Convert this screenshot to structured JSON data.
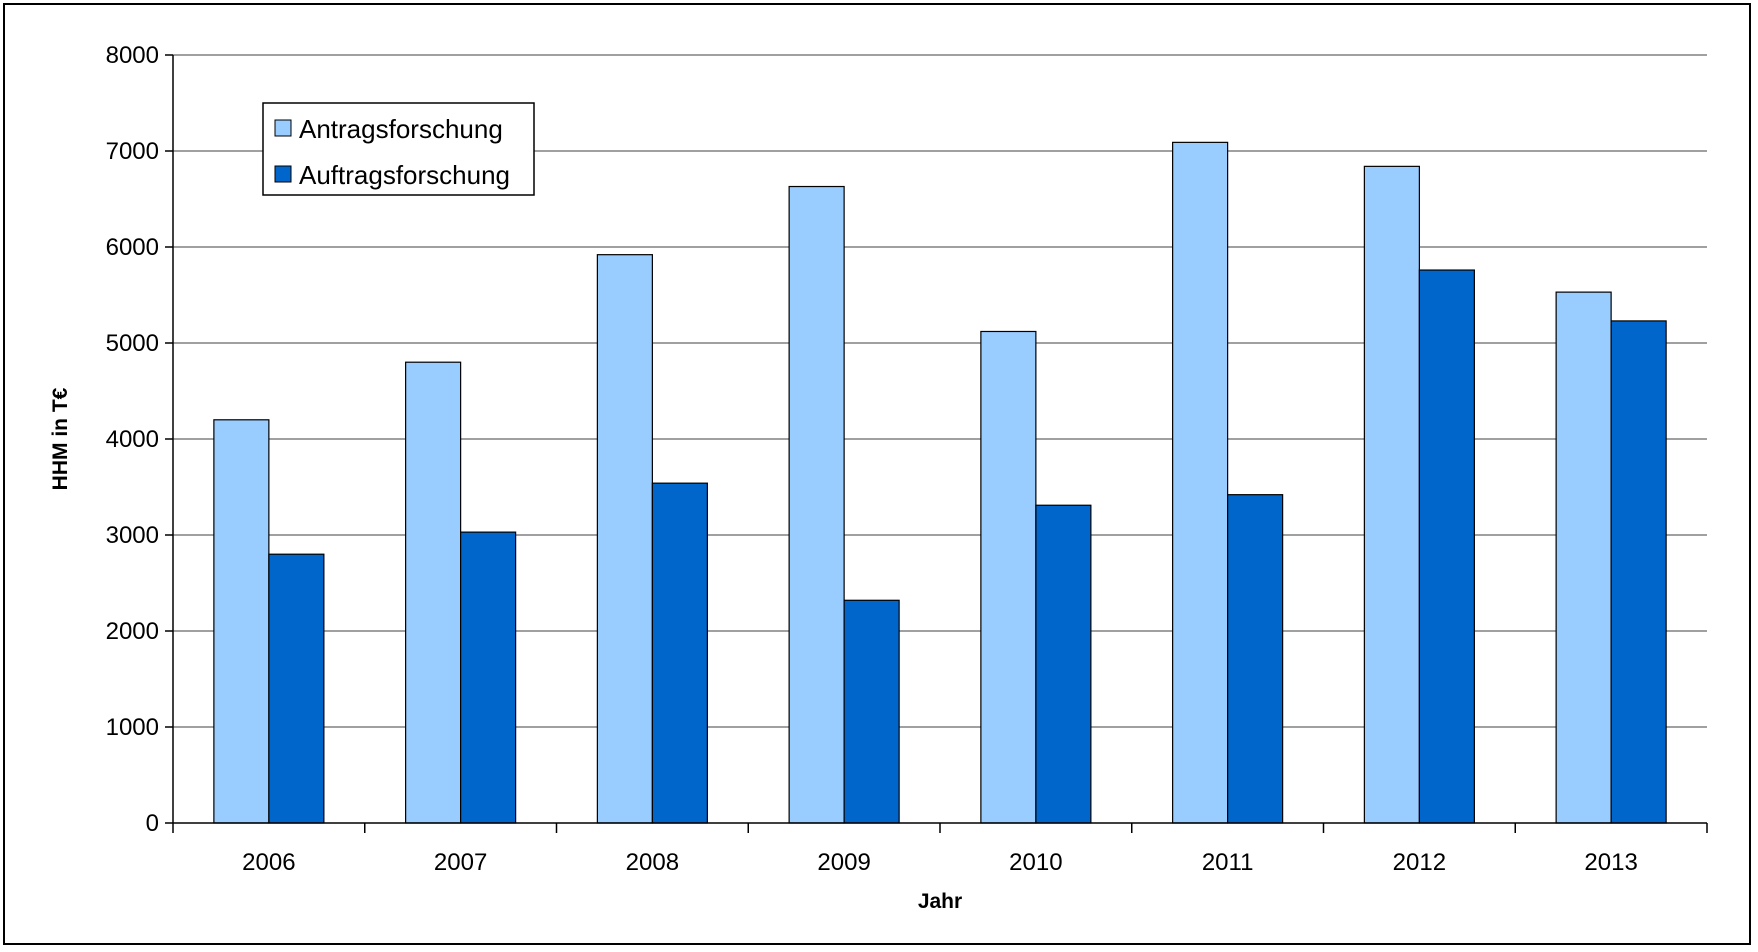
{
  "chart_data": {
    "type": "bar",
    "title": "",
    "xlabel": "Jahr",
    "ylabel": "HHM in T€",
    "categories": [
      "2006",
      "2007",
      "2008",
      "2009",
      "2010",
      "2011",
      "2012",
      "2013"
    ],
    "series": [
      {
        "name": "Antragsforschung",
        "color": "#99CCFF",
        "values": [
          4200,
          4800,
          5920,
          6630,
          5120,
          7090,
          6840,
          5530
        ]
      },
      {
        "name": "Auftragsforschung",
        "color": "#0066CC",
        "values": [
          2800,
          3030,
          3540,
          2320,
          3310,
          3420,
          5760,
          5230
        ]
      }
    ],
    "ylim": [
      0,
      8000
    ],
    "yticks": [
      0,
      1000,
      2000,
      3000,
      4000,
      5000,
      6000,
      7000,
      8000
    ],
    "grid": true,
    "gridline_color": "#808080",
    "legend_position": "top-left"
  }
}
